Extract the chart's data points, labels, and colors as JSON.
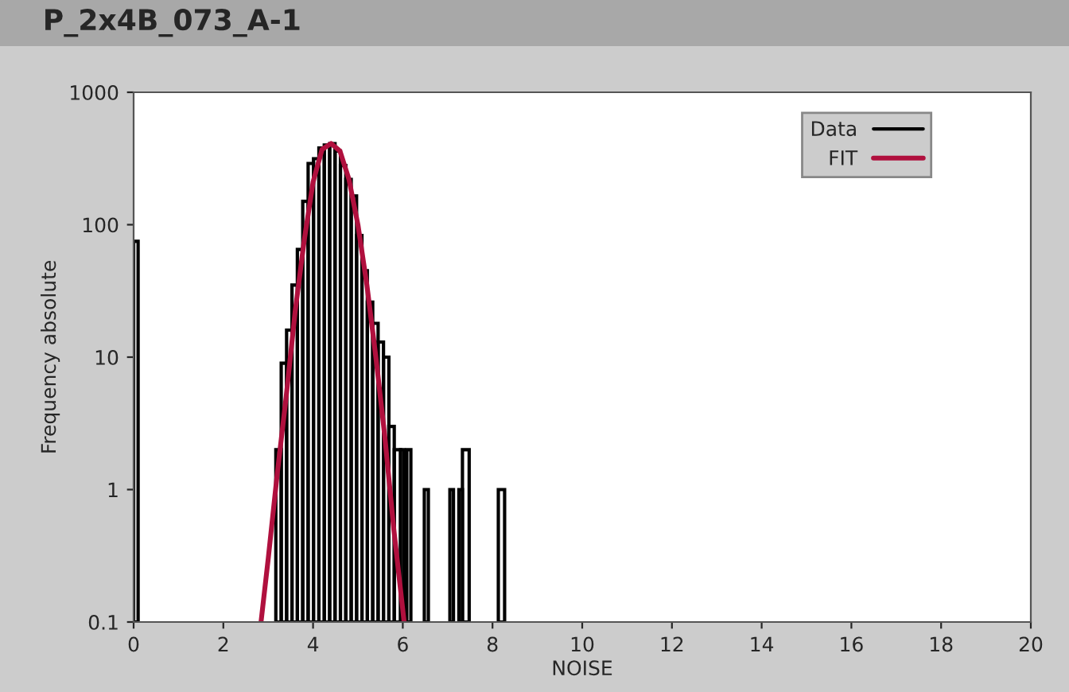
{
  "chart_data": {
    "type": "histogram",
    "title": "P_2x4B_073_A-1",
    "xlabel": "NOISE",
    "ylabel": "Frequency absolute",
    "log": "y",
    "xlim": [
      0,
      20
    ],
    "xticks": [
      0,
      2,
      4,
      6,
      8,
      10,
      12,
      14,
      16,
      18,
      20
    ],
    "ylim": [
      0.1,
      1000
    ],
    "yticks": [
      0.1,
      1,
      10,
      100,
      1000
    ],
    "grid": false,
    "legend": "top right",
    "series": [
      {
        "name": "Data",
        "color": "#000000",
        "bins": [
          0,
          0.1,
          3.17,
          3.29,
          3.41,
          3.53,
          3.65,
          3.77,
          3.89,
          4.01,
          4.13,
          4.25,
          4.37,
          4.49,
          4.61,
          4.73,
          4.85,
          4.97,
          5.09,
          5.21,
          5.33,
          5.45,
          5.57,
          5.69,
          5.81,
          5.95,
          6.03,
          6.09,
          6.18,
          6.48,
          6.57,
          7.05,
          7.13,
          7.25,
          7.33,
          7.48,
          8.13,
          8.27
        ],
        "values": [
          75,
          null,
          2,
          9,
          16,
          35,
          65,
          150,
          290,
          315,
          380,
          400,
          410,
          360,
          280,
          220,
          165,
          83,
          45,
          26,
          18,
          13,
          10,
          3,
          2,
          2,
          null,
          2,
          null,
          1,
          null,
          1,
          null,
          1,
          2,
          null,
          1
        ]
      },
      {
        "name": "FIT",
        "type": "line",
        "color": "#b0103e",
        "x": [
          2.84,
          3.0,
          3.2,
          3.4,
          3.6,
          3.8,
          4.0,
          4.2,
          4.4,
          4.6,
          4.8,
          5.0,
          5.2,
          5.4,
          5.6,
          5.8,
          6.03
        ],
        "values": [
          0.1,
          0.3,
          1.3,
          5,
          22,
          75,
          210,
          370,
          410,
          360,
          220,
          100,
          35,
          10,
          2.5,
          0.5,
          0.1
        ]
      }
    ]
  }
}
